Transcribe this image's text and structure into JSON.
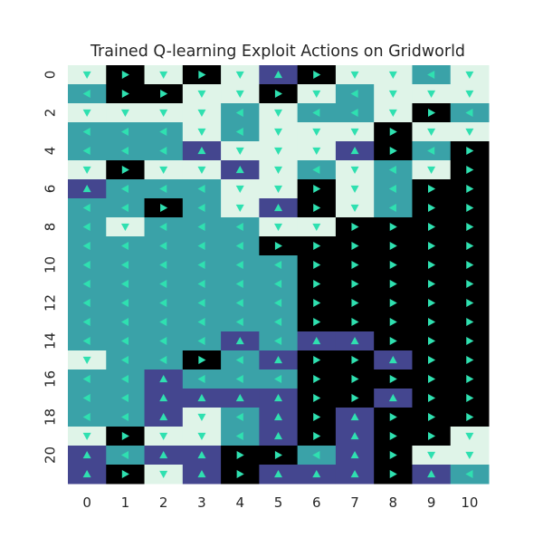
{
  "chart_data": {
    "type": "heatmap",
    "title": "Trained Q-learning Exploit Actions on Gridworld",
    "xlabel": "",
    "ylabel": "",
    "x_ticks": [
      "0",
      "1",
      "2",
      "3",
      "4",
      "5",
      "6",
      "7",
      "8",
      "9",
      "10"
    ],
    "y_ticks": [
      "0",
      "2",
      "4",
      "6",
      "8",
      "10",
      "12",
      "14",
      "16",
      "18",
      "20"
    ],
    "grid": false,
    "legend": "none",
    "action_legend": {
      "U": "up",
      "D": "down",
      "L": "left",
      "R": "right"
    },
    "action_colors": {
      "U": "#44468f",
      "D": "#dff4e8",
      "L": "#3aa2a8",
      "R": "#000000"
    },
    "arrow_color": "#2fe0b0",
    "rows": [
      "DRDRDURDDLD",
      "LRRDDRDLDDD",
      "DDDDLDLLDRL",
      "LLLDLDDDRDD",
      "LLLUDDDURLR",
      "DRDDUDLDLDR",
      "ULLLDDRDLRR",
      "LLRLDURDLRR",
      "LDLLLDDRRRR",
      "LLLLLRRRRRR",
      "LLLLLLRRRRR",
      "LLLLLLRRRRR",
      "LLLLLLRRRRR",
      "LLLLLLRRRRR",
      "LLLLULUURRR",
      "DLLRLURRURR",
      "LLULLLRRRRR",
      "LLUUUURRURR",
      "LLUDLURURRR",
      "DRDDLURURRD",
      "ULUURRLURDD",
      "URDURUUURUL"
    ]
  }
}
